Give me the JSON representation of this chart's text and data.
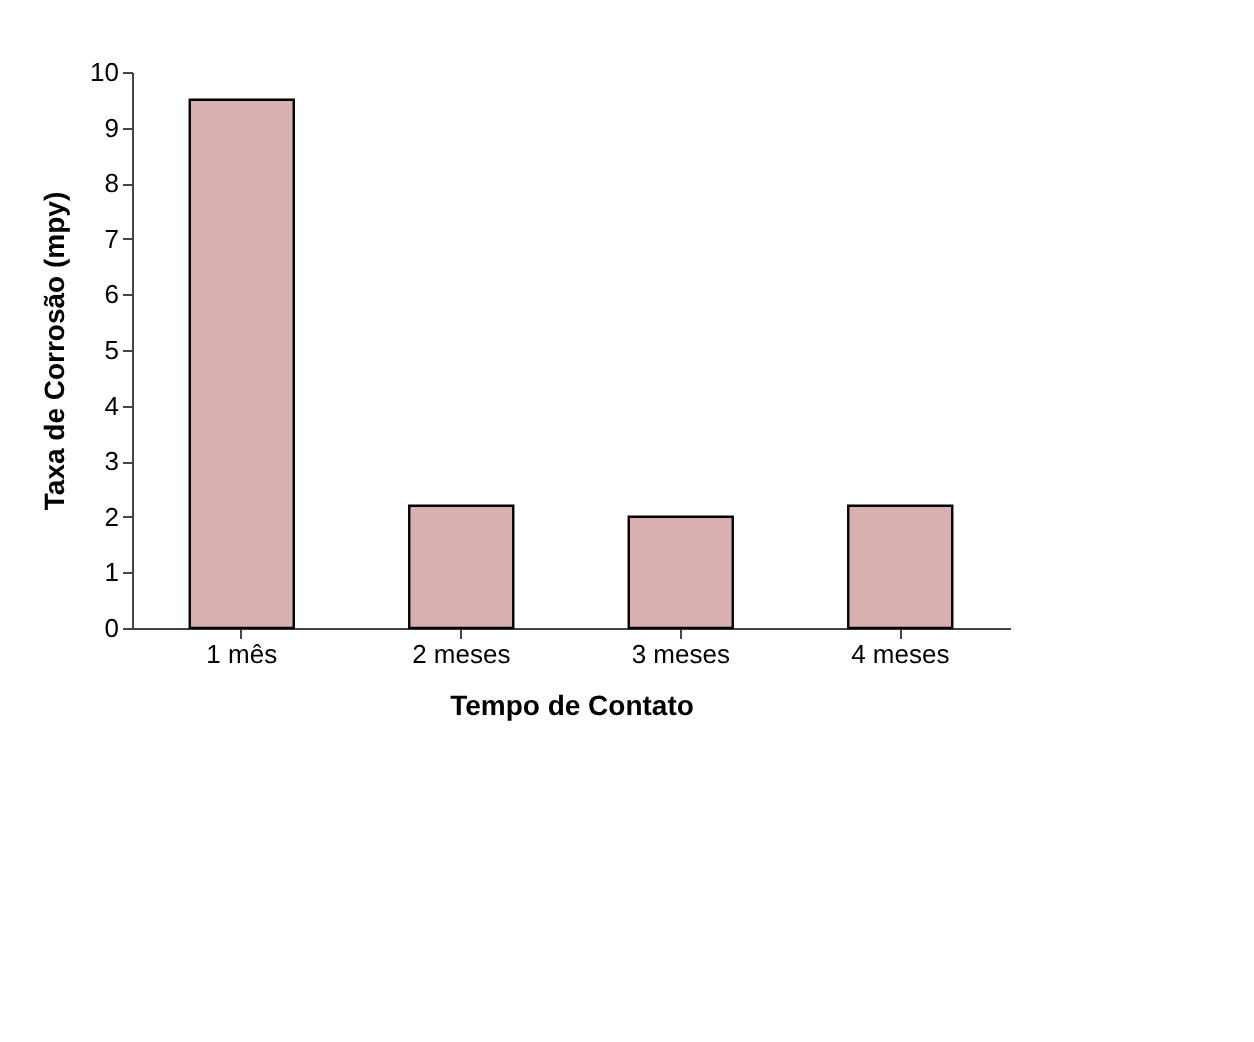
{
  "chart_data": {
    "type": "bar",
    "xlabel": "Tempo de Contato",
    "ylabel": "Taxa de Corrosão (mpy)",
    "categories": [
      "1 mês",
      "2 meses",
      "3 meses",
      "4 meses"
    ],
    "values": [
      9.5,
      2.2,
      2.0,
      2.2
    ],
    "color": "#d8b0b0",
    "ylim": [
      0,
      10
    ],
    "yticks": [
      0,
      1,
      2,
      3,
      4,
      5,
      6,
      7,
      8,
      9,
      10
    ],
    "grid": false
  }
}
